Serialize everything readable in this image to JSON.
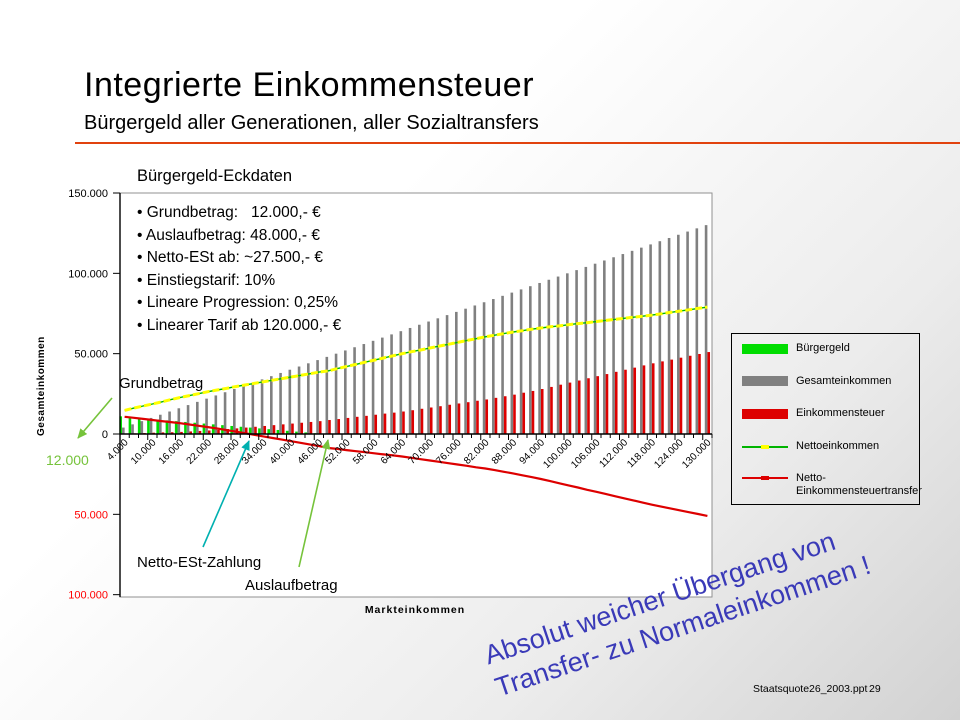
{
  "slide": {
    "title": "Integrierte Einkommensteuer",
    "subtitle": "Bürgergeld aller Generationen, aller Sozialtransfers",
    "note_line1": "Absolut weicher Übergang von",
    "note_line2": "Transfer- zu Normaleinkommen !",
    "footer_file": "Staatsquote26_2003.ppt",
    "footer_page": "29"
  },
  "eckdaten": {
    "title": "Bürgergeld-Eckdaten",
    "items": [
      "• Grundbetrag:   12.000,- €",
      "• Auslaufbetrag: 48.000,- €",
      "• Netto-ESt ab: ~27.500,- €",
      "• Einstiegstarif: 10%",
      "• Lineare Progression: 0,25%",
      "• Linearer Tarif ab 120.000,- €"
    ]
  },
  "annotations": {
    "grundbetrag_label": "Grundbetrag",
    "grundbetrag_value": "12.000",
    "netto_est_label": "Netto-ESt-Zahlung",
    "auslauf_label": "Auslaufbetrag"
  },
  "colors": {
    "accent_rule": "#e1420e",
    "buergergeld_bar": "#00dd00",
    "gesamteinkommen_bar": "#808080",
    "einkommensteuer_bar": "#dd0000",
    "nettoeinkommen_line": "#ffff00",
    "nettoeinkommen_underline": "#00b400",
    "transfer_line": "#dd0000",
    "annotation_green": "#76c33b",
    "annotation_cyan": "#00b0b0",
    "note_blue": "#3a3ab8",
    "negative_tick_red": "#ff0000"
  },
  "chart_data": {
    "type": "bar",
    "title": "Bürgergeld-Eckdaten",
    "xlabel": "Markteinkommen",
    "ylabel": "Gesamteinkommen",
    "values_unit": "EUR thousands",
    "ylim": [
      -100,
      150
    ],
    "grid": false,
    "legend_position": "right",
    "x_thousands": [
      4,
      6,
      8,
      10,
      12,
      14,
      16,
      18,
      20,
      22,
      24,
      26,
      28,
      30,
      32,
      34,
      36,
      38,
      40,
      42,
      44,
      46,
      48,
      50,
      52,
      54,
      56,
      58,
      60,
      62,
      64,
      66,
      68,
      70,
      72,
      74,
      76,
      78,
      80,
      82,
      84,
      86,
      88,
      90,
      92,
      94,
      96,
      98,
      100,
      102,
      104,
      106,
      108,
      110,
      112,
      114,
      116,
      118,
      120,
      122,
      124,
      126,
      128,
      130
    ],
    "x_tick_labels": [
      "4.000",
      "10.000",
      "16.000",
      "22.000",
      "28.000",
      "34.000",
      "40.000",
      "46.000",
      "52.000",
      "58.000",
      "64.000",
      "70.000",
      "76.000",
      "82.000",
      "88.000",
      "94.000",
      "100.000",
      "106.000",
      "112.000",
      "118.000",
      "124.000",
      "130.000"
    ],
    "y_ticks": [
      {
        "label": "150.000",
        "value": 150,
        "color": "#000000"
      },
      {
        "label": "100.000",
        "value": 100,
        "color": "#000000"
      },
      {
        "label": "50.000",
        "value": 50,
        "color": "#000000"
      },
      {
        "label": "0",
        "value": 0,
        "color": "#000000"
      },
      {
        "label": "50.000",
        "value": -50,
        "color": "#ff0000"
      },
      {
        "label": "100.000",
        "value": -100,
        "color": "#ff0000"
      }
    ],
    "series": [
      {
        "name": "Bürgergeld",
        "type": "bar",
        "color": "#00dd00",
        "values": [
          11,
          10.5,
          10,
          9.5,
          9,
          8.5,
          8,
          7.5,
          7,
          6.5,
          6,
          5.5,
          5,
          4.5,
          4,
          3.5,
          3,
          2.5,
          2,
          1.5,
          1,
          0.5,
          0,
          0,
          0,
          0,
          0,
          0,
          0,
          0,
          0,
          0,
          0,
          0,
          0,
          0,
          0,
          0,
          0,
          0,
          0,
          0,
          0,
          0,
          0,
          0,
          0,
          0,
          0,
          0,
          0,
          0,
          0,
          0,
          0,
          0,
          0,
          0,
          0,
          0,
          0,
          0,
          0,
          0
        ]
      },
      {
        "name": "Gesamteinkommen",
        "type": "bar",
        "color": "#808080",
        "values": [
          4,
          6,
          8,
          10,
          12,
          14,
          16,
          18,
          20,
          22,
          24,
          26,
          28,
          30,
          32,
          34,
          36,
          38,
          40,
          42,
          44,
          46,
          48,
          50,
          52,
          54,
          56,
          58,
          60,
          62,
          64,
          66,
          68,
          70,
          72,
          74,
          76,
          78,
          80,
          82,
          84,
          86,
          88,
          90,
          92,
          94,
          96,
          98,
          100,
          102,
          104,
          106,
          108,
          110,
          112,
          114,
          116,
          118,
          120,
          122,
          124,
          126,
          128,
          130
        ]
      },
      {
        "name": "Einkommensteuer",
        "type": "bar",
        "color": "#dd0000",
        "values": [
          0.3,
          0.4,
          0.6,
          0.8,
          1,
          1.1,
          1.3,
          1.6,
          1.9,
          2.2,
          2.6,
          3.1,
          3.5,
          4,
          4.5,
          5,
          5.5,
          6,
          6.5,
          7,
          7.5,
          8,
          8.7,
          9.3,
          10,
          10.7,
          11.3,
          12,
          12.7,
          13.3,
          14,
          14.8,
          15.7,
          16.5,
          17.3,
          18.2,
          19,
          19.8,
          20.7,
          21.5,
          22.5,
          23.5,
          24.5,
          25.7,
          26.8,
          28,
          29.3,
          30.7,
          32,
          33.3,
          34.7,
          36,
          37.3,
          38.7,
          40,
          41.3,
          42.7,
          44,
          45.2,
          46.3,
          47.5,
          48.7,
          49.8,
          51
        ]
      },
      {
        "name": "Nettoeinkommen",
        "type": "line",
        "color": "#ffff00",
        "underline_color": "#00b400",
        "values": [
          14.7,
          16.1,
          17.4,
          18.7,
          20,
          21.4,
          22.7,
          23.9,
          25.1,
          26.3,
          27.4,
          28.4,
          29.5,
          30.5,
          31.5,
          32.5,
          33.5,
          34.5,
          35.5,
          36.5,
          37.5,
          38.5,
          39.3,
          40.7,
          42,
          43.3,
          44.7,
          46,
          47.3,
          48.7,
          50,
          51.2,
          52.3,
          53.5,
          54.7,
          55.8,
          57,
          58.2,
          59.3,
          60.5,
          61.5,
          62.5,
          63.5,
          64.3,
          65.2,
          66,
          66.7,
          67.3,
          68,
          68.7,
          69.3,
          70,
          70.7,
          71.3,
          72,
          72.7,
          73.3,
          74,
          74.8,
          75.7,
          76.5,
          77.3,
          78.2,
          79
        ]
      },
      {
        "name": "Netto-Einkommensteuertransfer",
        "type": "line",
        "color": "#dd0000",
        "values": [
          10.7,
          10.1,
          9.4,
          8.7,
          8,
          7.4,
          6.7,
          5.9,
          5.1,
          4.3,
          3.4,
          2.4,
          1.5,
          0.5,
          -0.5,
          -1.5,
          -2.5,
          -3.5,
          -4.5,
          -5.5,
          -6.5,
          -7.5,
          -8.7,
          -9.3,
          -10,
          -10.7,
          -11.3,
          -12,
          -12.7,
          -13.3,
          -14,
          -14.8,
          -15.7,
          -16.5,
          -17.3,
          -18.2,
          -19,
          -19.8,
          -20.7,
          -21.5,
          -22.5,
          -23.5,
          -24.5,
          -25.7,
          -26.8,
          -28,
          -29.3,
          -30.7,
          -32,
          -33.3,
          -34.7,
          -36,
          -37.3,
          -38.7,
          -40,
          -41.3,
          -42.7,
          -44,
          -45.2,
          -46.3,
          -47.5,
          -48.7,
          -49.8,
          -51
        ]
      }
    ]
  }
}
